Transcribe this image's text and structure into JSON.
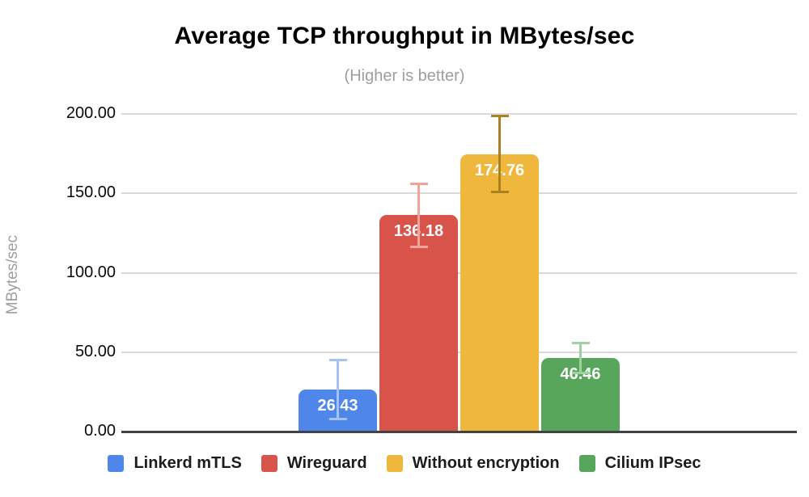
{
  "chart_data": {
    "type": "bar",
    "title": "Average TCP throughput in MBytes/sec",
    "subtitle": "(Higher is better)",
    "ylabel": "MBytes/sec",
    "xlabel": "",
    "ylim": [
      0,
      200
    ],
    "grid": true,
    "legend_position": "bottom",
    "yticks": [
      {
        "value": 0,
        "label": "0.00"
      },
      {
        "value": 50,
        "label": "50.00"
      },
      {
        "value": 100,
        "label": "100.00"
      },
      {
        "value": 150,
        "label": "150.00"
      },
      {
        "value": 200,
        "label": "200.00"
      }
    ],
    "series": [
      {
        "name": "Linkerd mTLS",
        "value": 26.43,
        "value_label": "26.43",
        "color": "#4e86ea",
        "error_color": "#a4c2f4",
        "error_high": 44.93,
        "error_low": 7.93
      },
      {
        "name": "Wireguard",
        "value": 136.18,
        "value_label": "136.18",
        "color": "#d8544a",
        "error_color": "#f0a49b",
        "error_high": 156.18,
        "error_low": 116.18
      },
      {
        "name": "Without encryption",
        "value": 174.76,
        "value_label": "174.76",
        "color": "#f0b73d",
        "error_color": "#a98123",
        "error_high": 198.76,
        "error_low": 150.76
      },
      {
        "name": "Cilium IPsec",
        "value": 46.46,
        "value_label": "46.46",
        "color": "#57a65c",
        "error_color": "#9fd1a5",
        "error_high": 55.96,
        "error_low": 36.96
      }
    ]
  },
  "colors": {
    "gridline": "#d9d9d9",
    "baseline": "#424242",
    "title": "#000000",
    "subtitle": "#9e9e9e",
    "bar_value_text": "#ffffff"
  }
}
